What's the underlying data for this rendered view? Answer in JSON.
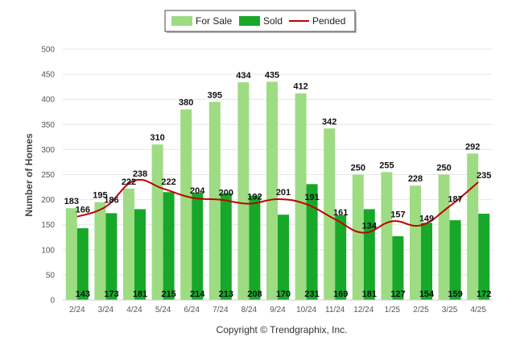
{
  "chart_data": {
    "type": "bar",
    "categories": [
      "2/24",
      "3/24",
      "4/24",
      "5/24",
      "6/24",
      "7/24",
      "8/24",
      "9/24",
      "10/24",
      "11/24",
      "12/24",
      "1/25",
      "2/25",
      "3/25",
      "4/25"
    ],
    "ylabel": "Number of Homes",
    "ylim": [
      0,
      500
    ],
    "yticks": [
      0,
      50,
      100,
      150,
      200,
      250,
      300,
      350,
      400,
      450,
      500
    ],
    "grid": true,
    "legend_position": "top-center",
    "series": [
      {
        "name": "For Sale",
        "type": "bar",
        "color": "#9ddc82",
        "values": [
          183,
          195,
          222,
          310,
          380,
          395,
          434,
          435,
          412,
          342,
          250,
          255,
          228,
          250,
          292
        ]
      },
      {
        "name": "Sold",
        "type": "bar",
        "color": "#17a82a",
        "values": [
          143,
          173,
          181,
          215,
          214,
          213,
          208,
          170,
          231,
          169,
          181,
          127,
          154,
          159,
          172
        ]
      },
      {
        "name": "Pended",
        "type": "line",
        "color": "#c00000",
        "values": [
          166,
          186,
          238,
          222,
          204,
          200,
          192,
          201,
          191,
          161,
          134,
          157,
          149,
          187,
          235
        ]
      }
    ]
  },
  "footer": {
    "copyright": "Copyright © Trendgraphix, Inc."
  }
}
